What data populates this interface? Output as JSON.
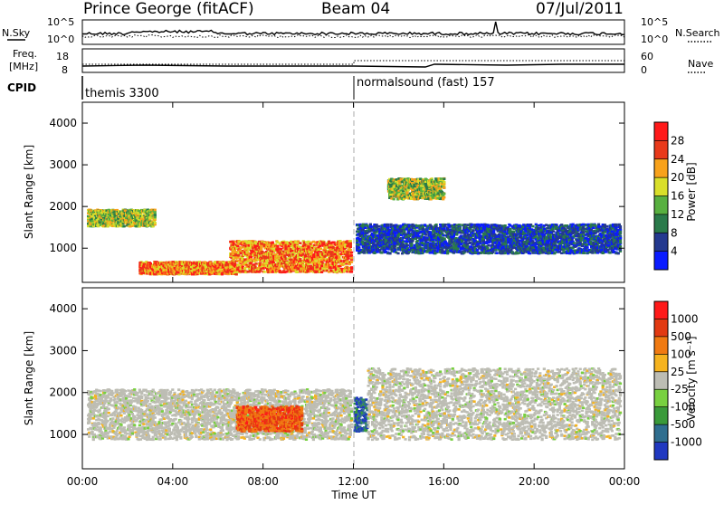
{
  "header": {
    "station": "Prince George (fitACF)",
    "beam": "Beam 04",
    "date": "07/Jul/2011"
  },
  "top_panel": {
    "nsky_label": "N.Sky",
    "nsky_ticks": [
      "10^5",
      "10^0"
    ],
    "nsearch_label": "N.Search",
    "nsearch_ticks": [
      "10^5",
      "10^0"
    ],
    "freq_label_1": "Freq.",
    "freq_label_2": "[MHz]",
    "freq_ticks": [
      "18",
      "8"
    ],
    "nave_label": "Nave",
    "nave_ticks": [
      "60",
      "0"
    ],
    "cpid_label": "CPID",
    "cpid_segments": [
      {
        "name": "themis 3300",
        "start_hour": 0,
        "end_hour": 12
      },
      {
        "name": "normalsound (fast) 157",
        "start_hour": 12,
        "end_hour": 24
      }
    ]
  },
  "chart_data": [
    {
      "type": "heatmap",
      "title": "",
      "ylabel": "Slant Range [km]",
      "xlabel": "",
      "xlim": [
        0,
        24
      ],
      "ylim": [
        180,
        4500
      ],
      "y_ticks": [
        1000,
        2000,
        3000,
        4000
      ],
      "colorbar": {
        "label": "Power [dB]",
        "ticks": [
          "4",
          "8",
          "12",
          "16",
          "20",
          "24",
          "28"
        ],
        "colors": [
          "#0a1cff",
          "#24398f",
          "#2a7a4a",
          "#58b040",
          "#d9df2a",
          "#f8a21b",
          "#e8391a",
          "#ff1a1a"
        ]
      },
      "echo_regions": [
        {
          "t0": 0.2,
          "t1": 3.2,
          "r0": 1550,
          "r1": 1950,
          "level": "mid"
        },
        {
          "t0": 2.5,
          "t1": 6.8,
          "r0": 400,
          "r1": 700,
          "level": "high"
        },
        {
          "t0": 6.5,
          "t1": 11.9,
          "r0": 450,
          "r1": 1200,
          "level": "high"
        },
        {
          "t0": 12.1,
          "t1": 23.8,
          "r0": 900,
          "r1": 1600,
          "level": "low"
        },
        {
          "t0": 13.5,
          "t1": 16.0,
          "r0": 2200,
          "r1": 2700,
          "level": "mid"
        }
      ]
    },
    {
      "type": "heatmap",
      "title": "",
      "ylabel": "Slant Range [km]",
      "xlabel": "Time UT",
      "xlim": [
        0,
        24
      ],
      "ylim": [
        180,
        4500
      ],
      "y_ticks": [
        1000,
        2000,
        3000,
        4000
      ],
      "x_ticks": [
        "00:00",
        "04:00",
        "08:00",
        "12:00",
        "16:00",
        "20:00",
        "00:00"
      ],
      "colorbar": {
        "label": "Velocity [m s⁻¹]",
        "ticks": [
          "1000",
          "500",
          "100",
          "25",
          "-25",
          "-100",
          "-500",
          "-1000"
        ],
        "colors": [
          "#2038c0",
          "#2f6e8f",
          "#3a9a3a",
          "#78d040",
          "#bdbdb4",
          "#f5b31f",
          "#f07a12",
          "#e23a12",
          "#ff1a1a"
        ]
      },
      "echo_regions": [
        {
          "t0": 0.2,
          "t1": 11.9,
          "r0": 900,
          "r1": 2100,
          "level": "ground"
        },
        {
          "t0": 6.8,
          "t1": 9.7,
          "r0": 1100,
          "r1": 1700,
          "level": "negative"
        },
        {
          "t0": 12.0,
          "t1": 12.6,
          "r0": 1100,
          "r1": 1900,
          "level": "positive"
        },
        {
          "t0": 12.6,
          "t1": 23.8,
          "r0": 900,
          "r1": 2600,
          "level": "ground"
        }
      ]
    }
  ]
}
